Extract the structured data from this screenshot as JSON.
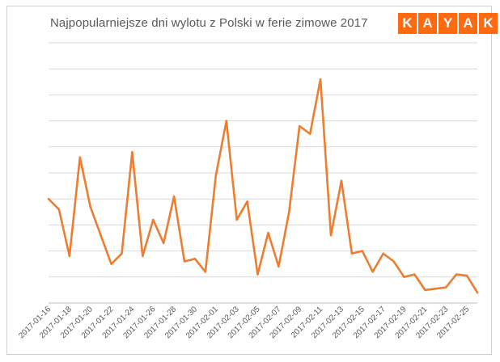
{
  "chart_data": {
    "type": "line",
    "title": "Najpopularniejsze  dni wylotu  z Polski w ferie zimowe 2017",
    "xlabel": "",
    "ylabel": "",
    "grid": true,
    "series_color": "#ed7d31",
    "x": [
      "2017-01-16",
      "2017-01-17",
      "2017-01-18",
      "2017-01-19",
      "2017-01-20",
      "2017-01-21",
      "2017-01-22",
      "2017-01-23",
      "2017-01-24",
      "2017-01-25",
      "2017-01-26",
      "2017-01-27",
      "2017-01-28",
      "2017-01-29",
      "2017-01-30",
      "2017-01-31",
      "2017-02-01",
      "2017-02-02",
      "2017-02-03",
      "2017-02-04",
      "2017-02-05",
      "2017-02-06",
      "2017-02-07",
      "2017-02-08",
      "2017-02-09",
      "2017-02-10",
      "2017-02-11",
      "2017-02-12",
      "2017-02-13",
      "2017-02-14",
      "2017-02-15",
      "2017-02-16",
      "2017-02-17",
      "2017-02-18",
      "2017-02-19",
      "2017-02-20",
      "2017-02-21",
      "2017-02-22",
      "2017-02-23",
      "2017-02-24",
      "2017-02-25",
      "2017-02-26"
    ],
    "values": [
      4.0,
      3.6,
      1.8,
      5.6,
      3.7,
      2.6,
      1.5,
      1.9,
      5.8,
      1.8,
      3.2,
      2.3,
      4.1,
      1.6,
      1.7,
      1.2,
      4.9,
      7.0,
      3.2,
      3.9,
      1.1,
      2.7,
      1.4,
      3.5,
      6.8,
      6.5,
      8.6,
      2.6,
      4.7,
      1.9,
      2.0,
      1.2,
      1.9,
      1.6,
      1.0,
      1.1,
      0.5,
      0.55,
      0.6,
      1.1,
      1.05,
      0.4
    ],
    "tick_labels": [
      "2017-01-16",
      "2017-01-18",
      "2017-01-20",
      "2017-01-22",
      "2017-01-24",
      "2017-01-26",
      "2017-01-28",
      "2017-01-30",
      "2017-02-01",
      "2017-02-03",
      "2017-02-05",
      "2017-02-07",
      "2017-02-09",
      "2017-02-11",
      "2017-02-13",
      "2017-02-15",
      "2017-02-17",
      "2017-02-19",
      "2017-02-21",
      "2017-02-23",
      "2017-02-25"
    ],
    "ylim": [
      0,
      10
    ],
    "gridline_count": 10
  },
  "logo": {
    "letters": [
      "K",
      "A",
      "Y",
      "A",
      "K"
    ],
    "color": "#ff690f"
  }
}
